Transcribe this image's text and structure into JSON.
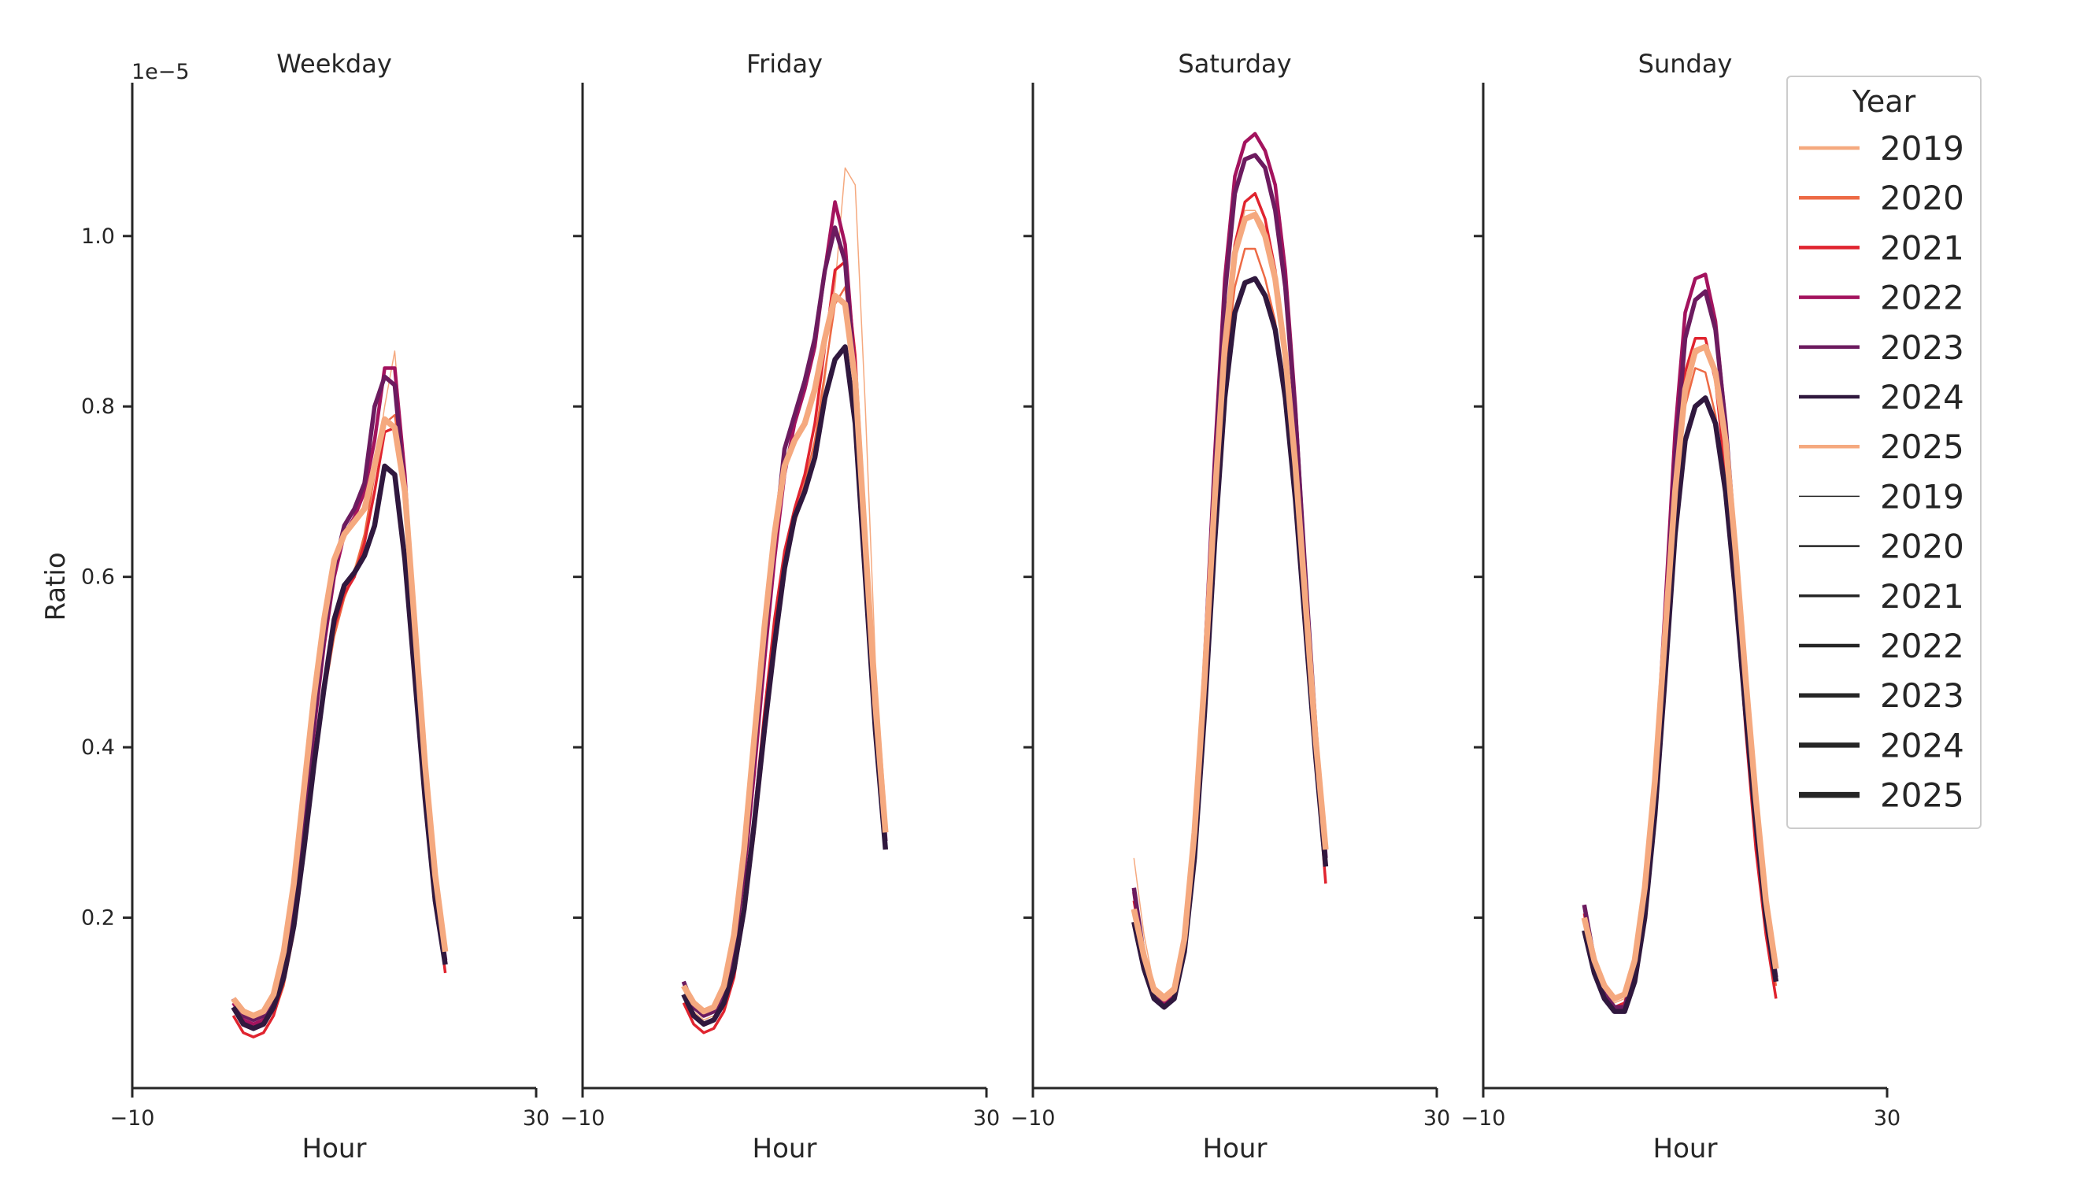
{
  "colors": {
    "axis": "#262626",
    "legend_border": "#cccccc",
    "palette": [
      "#f5a97f",
      "#ed6a45",
      "#e0242f",
      "#a3135e",
      "#6c1b5f",
      "#30183e",
      "#f5a97f"
    ]
  },
  "chart_data": {
    "type": "line",
    "title": "",
    "ylabel": "Ratio",
    "xlabel": "Hour",
    "y_offset_text": "1e−5",
    "y_scale_factor": 1e-05,
    "xlim": [
      -10,
      30
    ],
    "ylim": [
      0.0,
      1.18
    ],
    "x_ticks": [
      {
        "value": -10,
        "label": "−10"
      },
      {
        "value": 30,
        "label": "30"
      }
    ],
    "y_ticks": [
      {
        "value": 0.2,
        "label": "0.2"
      },
      {
        "value": 0.4,
        "label": "0.4"
      },
      {
        "value": 0.6,
        "label": "0.6"
      },
      {
        "value": 0.8,
        "label": "0.8"
      },
      {
        "value": 1.0,
        "label": "1.0"
      }
    ],
    "grid": false,
    "legend": {
      "title": "Year",
      "placement": "upper-right",
      "hue_entries": [
        "2019",
        "2020",
        "2021",
        "2022",
        "2023",
        "2024",
        "2025"
      ],
      "size_entries": [
        "2019",
        "2020",
        "2021",
        "2022",
        "2023",
        "2024",
        "2025"
      ]
    },
    "x": [
      0,
      1,
      2,
      3,
      4,
      5,
      6,
      7,
      8,
      9,
      10,
      11,
      12,
      13,
      14,
      15,
      16,
      17,
      18,
      19,
      20,
      21,
      22,
      23
    ],
    "panels": [
      {
        "title": "Weekday",
        "series": [
          {
            "name": "2019",
            "values": [
              0.095,
              0.075,
              0.07,
              0.075,
              0.09,
              0.13,
              0.19,
              0.28,
              0.38,
              0.47,
              0.54,
              0.58,
              0.61,
              0.65,
              0.72,
              0.8,
              0.865,
              0.72,
              0.54,
              0.37,
              0.24,
              0.16
            ]
          },
          {
            "name": "2020",
            "values": [
              0.085,
              0.065,
              0.06,
              0.065,
              0.085,
              0.12,
              0.18,
              0.27,
              0.37,
              0.46,
              0.53,
              0.575,
              0.605,
              0.65,
              0.72,
              0.78,
              0.79,
              0.7,
              0.52,
              0.35,
              0.23,
              0.15
            ]
          },
          {
            "name": "2021",
            "values": [
              0.085,
              0.065,
              0.06,
              0.065,
              0.085,
              0.125,
              0.185,
              0.28,
              0.38,
              0.47,
              0.54,
              0.58,
              0.6,
              0.64,
              0.7,
              0.77,
              0.775,
              0.7,
              0.52,
              0.35,
              0.23,
              0.135
            ]
          },
          {
            "name": "2022",
            "values": [
              0.1,
              0.08,
              0.075,
              0.08,
              0.1,
              0.14,
              0.21,
              0.31,
              0.42,
              0.52,
              0.6,
              0.65,
              0.67,
              0.7,
              0.76,
              0.845,
              0.845,
              0.72,
              0.54,
              0.37,
              0.24,
              0.15
            ]
          },
          {
            "name": "2023",
            "values": [
              0.105,
              0.085,
              0.08,
              0.085,
              0.105,
              0.145,
              0.215,
              0.32,
              0.43,
              0.53,
              0.61,
              0.66,
              0.68,
              0.71,
              0.8,
              0.835,
              0.825,
              0.7,
              0.52,
              0.36,
              0.23,
              0.15
            ]
          },
          {
            "name": "2024",
            "values": [
              0.095,
              0.075,
              0.07,
              0.075,
              0.095,
              0.13,
              0.19,
              0.28,
              0.38,
              0.47,
              0.55,
              0.59,
              0.605,
              0.625,
              0.66,
              0.73,
              0.72,
              0.62,
              0.48,
              0.34,
              0.22,
              0.145
            ]
          },
          {
            "name": "2025",
            "values": [
              0.105,
              0.09,
              0.085,
              0.09,
              0.11,
              0.16,
              0.24,
              0.35,
              0.46,
              0.55,
              0.62,
              0.65,
              0.665,
              0.68,
              0.73,
              0.785,
              0.775,
              0.7,
              0.54,
              0.38,
              0.25,
              0.16
            ]
          }
        ]
      },
      {
        "title": "Friday",
        "series": [
          {
            "name": "2019",
            "values": [
              0.115,
              0.09,
              0.08,
              0.085,
              0.1,
              0.14,
              0.2,
              0.29,
              0.4,
              0.51,
              0.61,
              0.66,
              0.7,
              0.75,
              0.83,
              0.94,
              1.08,
              1.06,
              0.8,
              0.5,
              0.33
            ]
          },
          {
            "name": "2020",
            "values": [
              0.1,
              0.075,
              0.065,
              0.07,
              0.09,
              0.13,
              0.2,
              0.3,
              0.41,
              0.52,
              0.62,
              0.67,
              0.71,
              0.76,
              0.84,
              0.92,
              0.94,
              0.85,
              0.65,
              0.45,
              0.29
            ]
          },
          {
            "name": "2021",
            "values": [
              0.1,
              0.075,
              0.065,
              0.07,
              0.09,
              0.13,
              0.21,
              0.32,
              0.44,
              0.55,
              0.63,
              0.68,
              0.72,
              0.78,
              0.87,
              0.96,
              0.97,
              0.86,
              0.66,
              0.46,
              0.3
            ]
          },
          {
            "name": "2022",
            "values": [
              0.125,
              0.095,
              0.085,
              0.09,
              0.11,
              0.16,
              0.25,
              0.37,
              0.5,
              0.62,
              0.72,
              0.78,
              0.82,
              0.87,
              0.96,
              1.04,
              0.99,
              0.84,
              0.64,
              0.45,
              0.3
            ]
          },
          {
            "name": "2023",
            "values": [
              0.125,
              0.095,
              0.085,
              0.09,
              0.11,
              0.165,
              0.26,
              0.39,
              0.52,
              0.64,
              0.75,
              0.79,
              0.83,
              0.88,
              0.96,
              1.01,
              0.97,
              0.82,
              0.63,
              0.44,
              0.29
            ]
          },
          {
            "name": "2024",
            "values": [
              0.11,
              0.085,
              0.075,
              0.08,
              0.1,
              0.14,
              0.21,
              0.31,
              0.42,
              0.52,
              0.61,
              0.67,
              0.7,
              0.74,
              0.81,
              0.855,
              0.87,
              0.78,
              0.6,
              0.42,
              0.28
            ]
          },
          {
            "name": "2025",
            "values": [
              0.12,
              0.1,
              0.09,
              0.095,
              0.12,
              0.18,
              0.28,
              0.41,
              0.54,
              0.65,
              0.73,
              0.76,
              0.78,
              0.82,
              0.88,
              0.93,
              0.92,
              0.83,
              0.64,
              0.45,
              0.3
            ]
          }
        ]
      },
      {
        "title": "Saturday",
        "series": [
          {
            "name": "2019",
            "values": [
              0.27,
              0.18,
              0.12,
              0.11,
              0.12,
              0.18,
              0.3,
              0.48,
              0.68,
              0.86,
              0.98,
              1.03,
              1.03,
              1.01,
              0.96,
              0.87,
              0.74,
              0.58,
              0.42,
              0.3
            ]
          },
          {
            "name": "2020",
            "values": [
              0.21,
              0.14,
              0.11,
              0.1,
              0.11,
              0.17,
              0.29,
              0.47,
              0.67,
              0.84,
              0.94,
              0.985,
              0.985,
              0.95,
              0.9,
              0.81,
              0.69,
              0.54,
              0.39,
              0.27
            ]
          },
          {
            "name": "2021",
            "values": [
              0.22,
              0.15,
              0.11,
              0.1,
              0.11,
              0.17,
              0.29,
              0.48,
              0.7,
              0.88,
              0.99,
              1.04,
              1.05,
              1.02,
              0.96,
              0.86,
              0.72,
              0.56,
              0.39,
              0.24
            ]
          },
          {
            "name": "2022",
            "values": [
              0.23,
              0.15,
              0.11,
              0.1,
              0.11,
              0.17,
              0.3,
              0.5,
              0.74,
              0.95,
              1.07,
              1.11,
              1.12,
              1.1,
              1.06,
              0.96,
              0.8,
              0.6,
              0.42,
              0.27
            ]
          },
          {
            "name": "2023",
            "values": [
              0.235,
              0.155,
              0.11,
              0.095,
              0.105,
              0.165,
              0.29,
              0.49,
              0.72,
              0.93,
              1.05,
              1.09,
              1.095,
              1.08,
              1.03,
              0.94,
              0.79,
              0.6,
              0.42,
              0.27
            ]
          },
          {
            "name": "2024",
            "values": [
              0.195,
              0.14,
              0.105,
              0.095,
              0.105,
              0.16,
              0.27,
              0.44,
              0.64,
              0.81,
              0.91,
              0.945,
              0.95,
              0.93,
              0.89,
              0.81,
              0.69,
              0.54,
              0.39,
              0.26
            ]
          },
          {
            "name": "2025",
            "values": [
              0.21,
              0.155,
              0.115,
              0.105,
              0.115,
              0.175,
              0.3,
              0.48,
              0.69,
              0.87,
              0.98,
              1.02,
              1.025,
              1.0,
              0.95,
              0.86,
              0.73,
              0.57,
              0.41,
              0.28
            ]
          }
        ]
      },
      {
        "title": "Sunday",
        "series": [
          {
            "name": "2019",
            "values": [
              0.205,
              0.15,
              0.115,
              0.1,
              0.105,
              0.14,
              0.22,
              0.34,
              0.5,
              0.67,
              0.8,
              0.86,
              0.87,
              0.83,
              0.74,
              0.6,
              0.45,
              0.32,
              0.22,
              0.14
            ]
          },
          {
            "name": "2020",
            "values": [
              0.2,
              0.14,
              0.11,
              0.095,
              0.1,
              0.14,
              0.22,
              0.35,
              0.51,
              0.68,
              0.8,
              0.845,
              0.84,
              0.79,
              0.7,
              0.57,
              0.43,
              0.3,
              0.2,
              0.12
            ]
          },
          {
            "name": "2021",
            "values": [
              0.205,
              0.145,
              0.11,
              0.095,
              0.1,
              0.14,
              0.225,
              0.36,
              0.53,
              0.71,
              0.84,
              0.88,
              0.88,
              0.83,
              0.72,
              0.58,
              0.42,
              0.28,
              0.18,
              0.105
            ]
          },
          {
            "name": "2022",
            "values": [
              0.215,
              0.15,
              0.11,
              0.095,
              0.095,
              0.135,
              0.22,
              0.36,
              0.56,
              0.77,
              0.91,
              0.95,
              0.955,
              0.9,
              0.78,
              0.62,
              0.45,
              0.31,
              0.2,
              0.13
            ]
          },
          {
            "name": "2023",
            "values": [
              0.215,
              0.15,
              0.11,
              0.095,
              0.095,
              0.135,
              0.215,
              0.35,
              0.54,
              0.74,
              0.88,
              0.925,
              0.935,
              0.89,
              0.78,
              0.63,
              0.46,
              0.32,
              0.21,
              0.13
            ]
          },
          {
            "name": "2024",
            "values": [
              0.185,
              0.135,
              0.105,
              0.09,
              0.09,
              0.125,
              0.2,
              0.32,
              0.48,
              0.65,
              0.76,
              0.8,
              0.81,
              0.78,
              0.7,
              0.58,
              0.44,
              0.31,
              0.2,
              0.125
            ]
          },
          {
            "name": "2025",
            "values": [
              0.2,
              0.15,
              0.12,
              0.105,
              0.11,
              0.15,
              0.235,
              0.36,
              0.53,
              0.7,
              0.82,
              0.865,
              0.87,
              0.84,
              0.76,
              0.63,
              0.48,
              0.34,
              0.22,
              0.14
            ]
          }
        ]
      }
    ]
  }
}
